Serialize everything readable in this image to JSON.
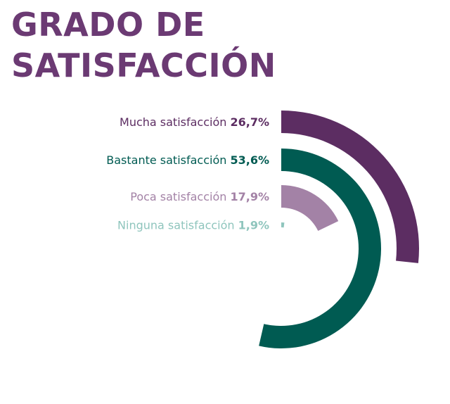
{
  "title_lines": [
    "GRADO DE",
    "SATISFACCIÓN"
  ],
  "colors": {
    "title": "#6b3a73",
    "series": [
      "#5c2d62",
      "#005b52",
      "#a382a6",
      "#8fc5bd"
    ]
  },
  "chart_data": {
    "type": "radial-bar",
    "title": "GRADO DE SATISFACCIÓN",
    "max_value": 100,
    "categories": [
      "Mucha satisfacción",
      "Bastante satisfacción",
      "Poca satisfacción",
      "Ninguna satisfacción"
    ],
    "values": [
      26.7,
      53.6,
      17.9,
      1.9
    ],
    "value_labels": [
      "26,7%",
      "53,6%",
      "17,9%",
      "1,9%"
    ]
  }
}
